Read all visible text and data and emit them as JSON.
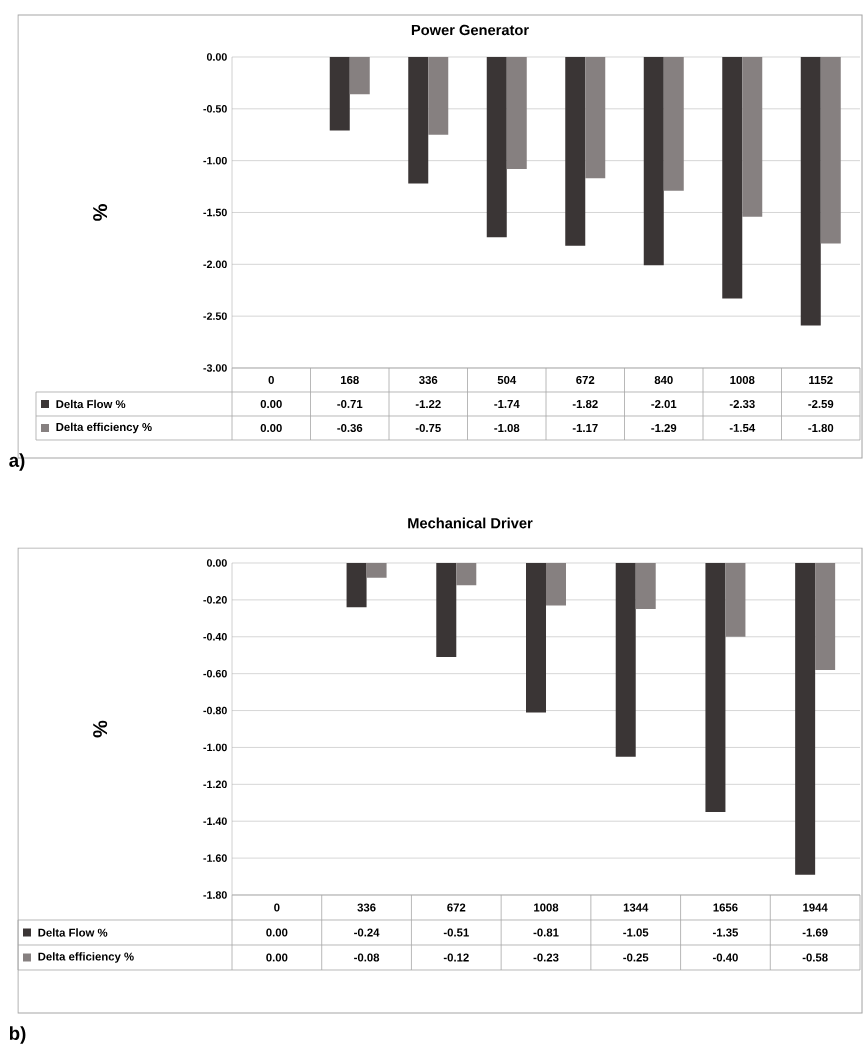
{
  "chart_data": [
    {
      "type": "bar",
      "title": "Power Generator",
      "ylabel": "%",
      "categories": [
        "0",
        "168",
        "336",
        "504",
        "672",
        "840",
        "1008",
        "1152"
      ],
      "series": [
        {
          "name": "Delta Flow %",
          "color": "#3a3535",
          "values": [
            0.0,
            -0.71,
            -1.22,
            -1.74,
            -1.82,
            -2.01,
            -2.33,
            -2.59
          ],
          "value_labels": [
            "0.00",
            "-0.71",
            "-1.22",
            "-1.74",
            "-1.82",
            "-2.01",
            "-2.33",
            "-2.59"
          ]
        },
        {
          "name": "Delta efficiency %",
          "color": "#868080",
          "values": [
            0.0,
            -0.36,
            -0.75,
            -1.08,
            -1.17,
            -1.29,
            -1.54,
            -1.8
          ],
          "value_labels": [
            "0.00",
            "-0.36",
            "-0.75",
            "-1.08",
            "-1.17",
            "-1.29",
            "-1.54",
            "-1.80"
          ]
        }
      ],
      "ylim": [
        -3.0,
        0.0
      ],
      "yticks": [
        {
          "value": -3.0,
          "label": "-3.00"
        },
        {
          "value": -2.5,
          "label": "-2.50"
        },
        {
          "value": -2.0,
          "label": "-2.00"
        },
        {
          "value": -1.5,
          "label": "-1.50"
        },
        {
          "value": -1.0,
          "label": "-1.00"
        },
        {
          "value": -0.5,
          "label": "-0.50"
        },
        {
          "value": 0.0,
          "label": "0.00"
        }
      ],
      "grid": "y",
      "legend": "bottom",
      "annotations": [
        "a)"
      ]
    },
    {
      "type": "bar",
      "title": "Mechanical Driver",
      "ylabel": "%",
      "categories": [
        "0",
        "336",
        "672",
        "1008",
        "1344",
        "1656",
        "1944"
      ],
      "series": [
        {
          "name": "Delta Flow %",
          "color": "#3a3535",
          "values": [
            0.0,
            -0.24,
            -0.51,
            -0.81,
            -1.05,
            -1.35,
            -1.69
          ],
          "value_labels": [
            "0.00",
            "-0.24",
            "-0.51",
            "-0.81",
            "-1.05",
            "-1.35",
            "-1.69"
          ]
        },
        {
          "name": "Delta efficiency %",
          "color": "#868080",
          "values": [
            0.0,
            -0.08,
            -0.12,
            -0.23,
            -0.25,
            -0.4,
            -0.58
          ],
          "value_labels": [
            "0.00",
            "-0.08",
            "-0.12",
            "-0.23",
            "-0.25",
            "-0.40",
            "-0.58"
          ]
        }
      ],
      "ylim": [
        -1.8,
        0.0
      ],
      "yticks": [
        {
          "value": -1.8,
          "label": "-1.80"
        },
        {
          "value": -1.6,
          "label": "-1.60"
        },
        {
          "value": -1.4,
          "label": "-1.40"
        },
        {
          "value": -1.2,
          "label": "-1.20"
        },
        {
          "value": -1.0,
          "label": "-1.00"
        },
        {
          "value": -0.8,
          "label": "-0.80"
        },
        {
          "value": -0.6,
          "label": "-0.60"
        },
        {
          "value": -0.4,
          "label": "-0.40"
        },
        {
          "value": -0.2,
          "label": "-0.20"
        },
        {
          "value": 0.0,
          "label": "0.00"
        }
      ],
      "grid": "y",
      "legend": "bottom",
      "annotations": [
        "b)"
      ]
    }
  ]
}
